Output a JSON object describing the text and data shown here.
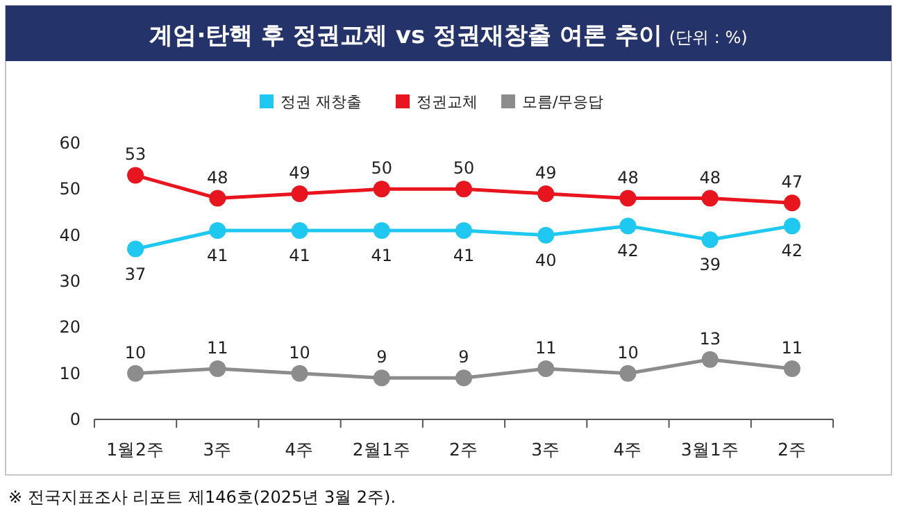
{
  "chart_data": {
    "type": "line",
    "title": "계엄·탄핵 후 정권교체 vs 정권재창출 여론 추이",
    "subtitle": "(단위 : %)",
    "categories": [
      "1월2주",
      "3주",
      "4주",
      "2월1주",
      "2주",
      "3주",
      "4주",
      "3월1주",
      "2주"
    ],
    "series": [
      {
        "name": "정권 재창출",
        "color": "#1ec8f0",
        "values": [
          37,
          41,
          41,
          41,
          41,
          40,
          42,
          39,
          42
        ]
      },
      {
        "name": "정권교체",
        "color": "#e8141e",
        "values": [
          53,
          48,
          49,
          50,
          50,
          49,
          48,
          48,
          47
        ]
      },
      {
        "name": "모름/무응답",
        "color": "#8c8c8c",
        "values": [
          10,
          11,
          10,
          9,
          9,
          11,
          10,
          13,
          11
        ]
      }
    ],
    "ylim": [
      0,
      60
    ],
    "yticks": [
      0,
      10,
      20,
      30,
      40,
      50,
      60
    ],
    "data_labels": true,
    "legend": "top",
    "marker": "circle",
    "grid": false,
    "annotations": [
      "※ 전국지표조사 리포트 제146호(2025년 3월 2주)."
    ]
  }
}
